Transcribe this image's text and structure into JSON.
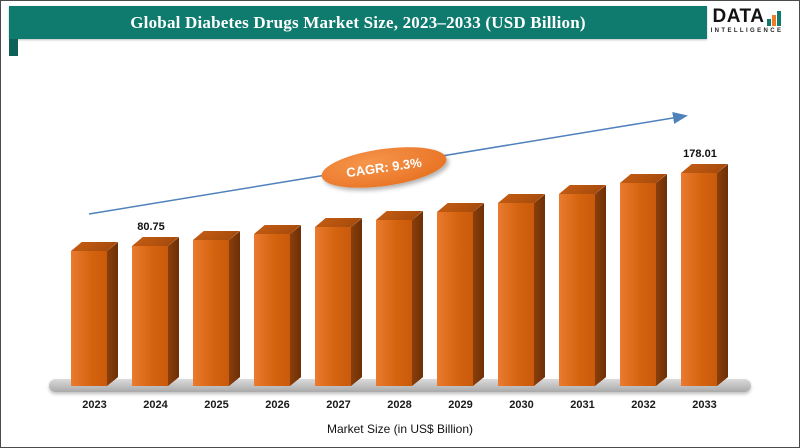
{
  "header": {
    "title": "Global Diabetes Drugs Market Size, 2023–2033 (USD Billion)"
  },
  "logo": {
    "name": "DATA",
    "subtitle": "INTELLIGENCE"
  },
  "annotation": {
    "cagr_label": "CAGR: 9.3%"
  },
  "footer": {
    "axis_label": "Market Size (in US$ Billion)"
  },
  "colors": {
    "header_bg": "#0f7a6e",
    "bar_front": "#d56410",
    "bar_side": "#6e2f05",
    "bar_top": "#a84c0c",
    "trend_arrow": "#4f81bd",
    "cagr_bg": "#ed7d31",
    "floor": "#b5b5b5"
  },
  "chart_data": {
    "type": "bar",
    "title": "Global Diabetes Drugs Market Size, 2023–2033 (USD Billion)",
    "categories": [
      "2023",
      "2024",
      "2025",
      "2026",
      "2027",
      "2028",
      "2029",
      "2030",
      "2031",
      "2032",
      "2033"
    ],
    "values": [
      73.9,
      80.75,
      88.3,
      96.5,
      105.4,
      115.2,
      126.0,
      137.7,
      150.5,
      164.5,
      178.01
    ],
    "point_labels": {
      "2024": "80.75",
      "2033": "178.01"
    },
    "cagr": "9.3%",
    "xlabel": "Market Size (in US$ Billion)",
    "ylabel": "",
    "unit": "USD Billion",
    "legend": [],
    "grid": false,
    "trend_arrow": true
  }
}
